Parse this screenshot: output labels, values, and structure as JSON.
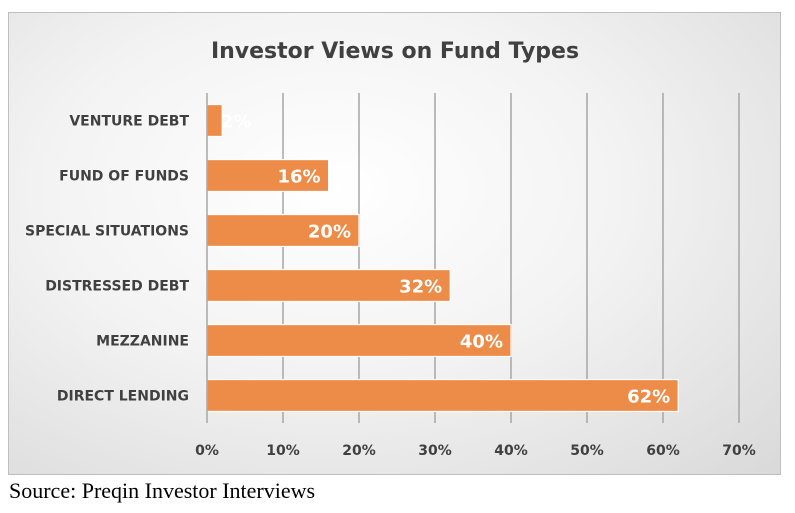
{
  "chart_data": {
    "type": "bar",
    "orientation": "horizontal",
    "title": "Investor Views on Fund Types",
    "categories": [
      "VENTURE DEBT",
      "FUND OF FUNDS",
      "SPECIAL SITUATIONS",
      "DISTRESSED DEBT",
      "MEZZANINE",
      "DIRECT LENDING"
    ],
    "values": [
      2,
      16,
      20,
      32,
      40,
      62
    ],
    "data_labels": [
      "2%",
      "16%",
      "20%",
      "32%",
      "40%",
      "62%"
    ],
    "xlim": [
      0,
      70
    ],
    "x_ticks": [
      0,
      10,
      20,
      30,
      40,
      50,
      60,
      70
    ],
    "x_tick_labels": [
      "0%",
      "10%",
      "20%",
      "30%",
      "40%",
      "50%",
      "60%",
      "70%"
    ],
    "xlabel": "",
    "ylabel": "",
    "grid": "vertical",
    "legend": "none",
    "bar_color": "#ed8c48",
    "grid_color": "#a6a6a6"
  },
  "source": "Source: Preqin Investor Interviews"
}
